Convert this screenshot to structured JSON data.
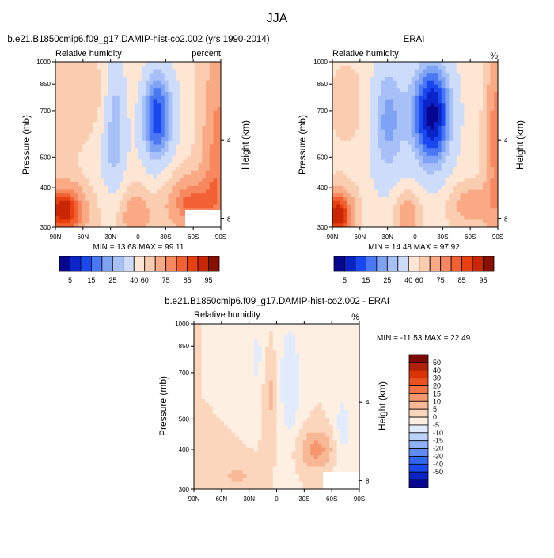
{
  "title": "JJA",
  "colors": {
    "rh_palette": [
      "#06068f",
      "#0b24c8",
      "#1a48f0",
      "#4a78f4",
      "#7ea3f5",
      "#a7c0f7",
      "#cddcfa",
      "#fde6d4",
      "#fbcdb0",
      "#f9aa85",
      "#f6875f",
      "#f26034",
      "#e8400f",
      "#c92704",
      "#8a0f03"
    ],
    "diff_palette": [
      "#06068f",
      "#0b24c8",
      "#1a48f0",
      "#2f66f2",
      "#5f8cf4",
      "#8fb0f6",
      "#bcd1f9",
      "#e1ebfc",
      "#fdefe2",
      "#fbd6bd",
      "#f9b895",
      "#f6966c",
      "#f27344",
      "#ea5220",
      "#d93307",
      "#b0200a",
      "#7a0a03"
    ]
  },
  "chart_data": [
    {
      "type": "heatmap",
      "panel_title": "b.e21.B1850cmip6.f09_g17.DAMIP-hist-co2.002 (yrs 1990-2014)",
      "left_label": "Relative humidity",
      "right_label": "percent",
      "ylabel": "Pressure (mb)",
      "ylabel_right": "Height (km)",
      "x_ticks": [
        "90N",
        "60N",
        "30N",
        "0",
        "30S",
        "60S",
        "90S"
      ],
      "y_ticks": [
        "300",
        "400",
        "500",
        "700",
        "850",
        "1000"
      ],
      "height_ticks": [
        "8",
        "4"
      ],
      "stats": "MIN = 13.68   MAX = 99.11",
      "colorbar_labels": [
        "5",
        "15",
        "25",
        "40",
        "60",
        "75",
        "85",
        "95"
      ],
      "min": 13.68,
      "max": 99.11
    },
    {
      "type": "heatmap",
      "panel_title": "ERAI",
      "left_label": "Relative humidity",
      "right_label": "%",
      "ylabel": "Pressure (mb)",
      "ylabel_right": "Height (km)",
      "x_ticks": [
        "90N",
        "60N",
        "30N",
        "0",
        "30S",
        "60S",
        "90S"
      ],
      "y_ticks": [
        "300",
        "400",
        "500",
        "700",
        "850",
        "1000"
      ],
      "height_ticks": [
        "8",
        "4"
      ],
      "stats": "MIN = 14.48   MAX = 97.92",
      "colorbar_labels": [
        "5",
        "15",
        "25",
        "40",
        "60",
        "75",
        "85",
        "95"
      ],
      "min": 14.48,
      "max": 97.92
    },
    {
      "type": "heatmap",
      "panel_title": "b.e21.B1850cmip6.f09_g17.DAMIP-hist-co2.002 - ERAI",
      "left_label": "Relative humidity",
      "right_label": "%",
      "ylabel": "Pressure (mb)",
      "ylabel_right": "Height (km)",
      "x_ticks": [
        "90N",
        "60N",
        "30N",
        "0",
        "30S",
        "60S",
        "90S"
      ],
      "y_ticks": [
        "300",
        "400",
        "500",
        "700",
        "850",
        "1000"
      ],
      "height_ticks": [
        "8",
        "4"
      ],
      "stats": "MIN = -11.53   MAX =  22.49",
      "colorbar_labels": [
        "50",
        "40",
        "30",
        "20",
        "15",
        "10",
        "5",
        "0",
        "-5",
        "-10",
        "-15",
        "-20",
        "-30",
        "-40",
        "-50"
      ],
      "min": -11.53,
      "max": 22.49
    }
  ]
}
